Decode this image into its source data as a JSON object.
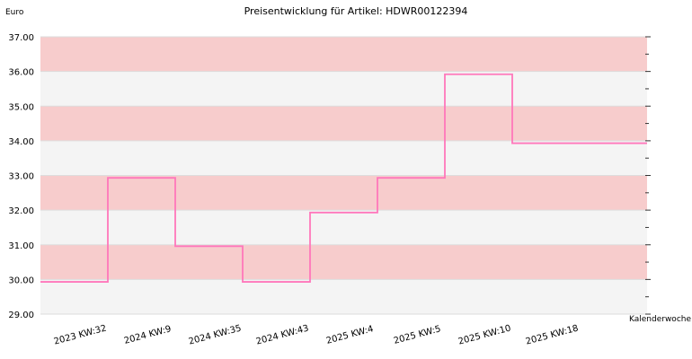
{
  "chart_data": {
    "type": "line",
    "step": true,
    "title": "Preisentwicklung für Artikel: HDWR00122394",
    "ylabel": "Euro",
    "xlabel": "Kalenderwoche",
    "ylim": [
      29.0,
      37.0
    ],
    "yticks": [
      "29.00",
      "30.00",
      "31.00",
      "32.00",
      "33.00",
      "34.00",
      "35.00",
      "36.00",
      "37.00"
    ],
    "categories": [
      "2023 KW:32",
      "2024 KW:9",
      "2024 KW:35",
      "2024 KW:43",
      "2025 KW:4",
      "2025 KW:5",
      "2025 KW:10",
      "2025 KW:18"
    ],
    "series": [
      {
        "values": [
          29.93,
          32.93,
          30.96,
          29.93,
          31.93,
          32.93,
          35.92,
          33.93
        ]
      }
    ],
    "grid": true,
    "colors": {
      "line": "#ff77bb",
      "band_pink": "#f7cccc",
      "band_grey": "#f4f4f4",
      "gridline": "#dddddd"
    }
  }
}
